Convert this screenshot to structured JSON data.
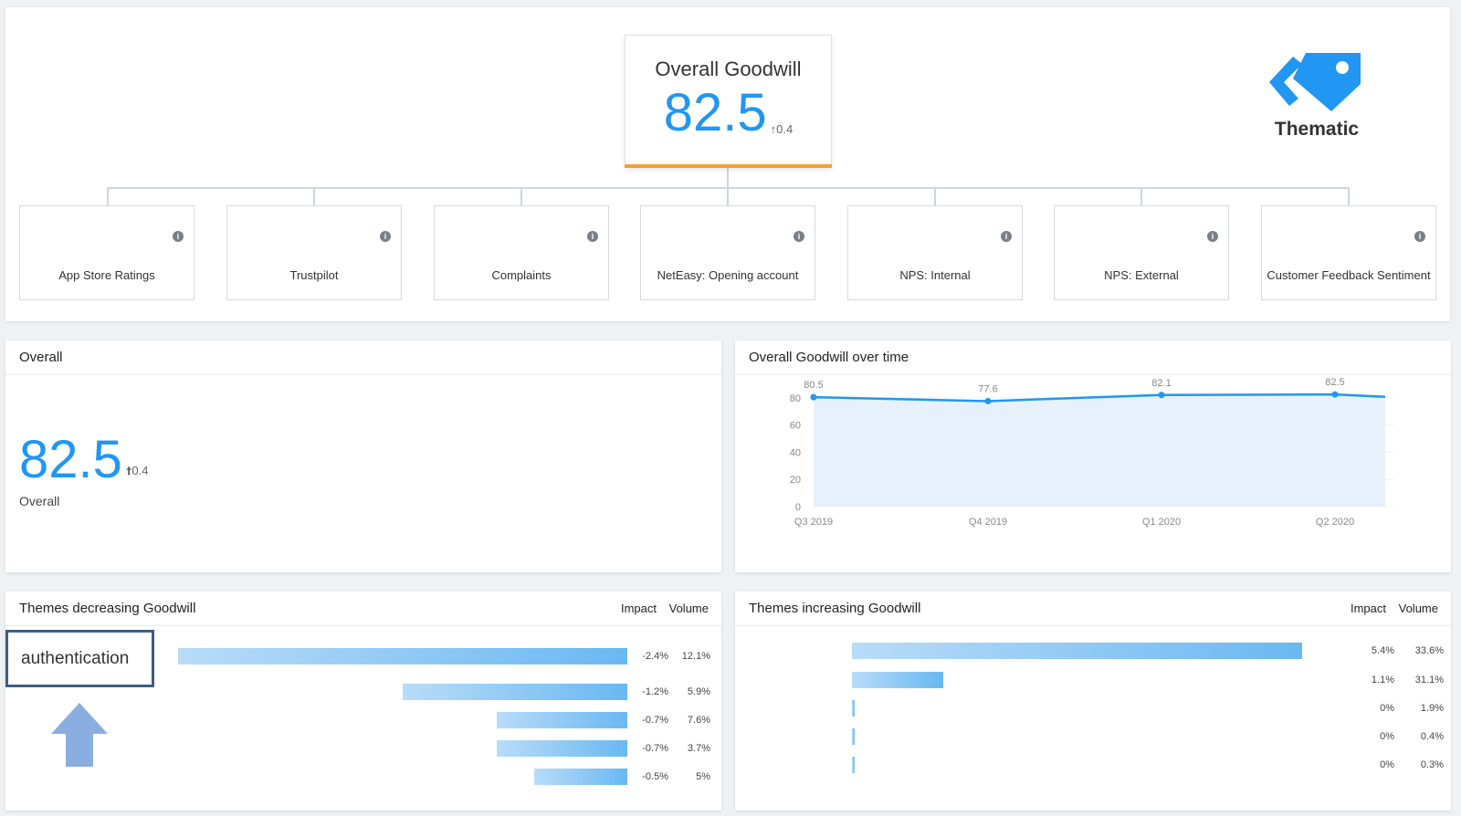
{
  "goodwill_card": {
    "title": "Overall Goodwill",
    "value": "82.5",
    "delta": "0.4"
  },
  "brand": {
    "name": "Thematic"
  },
  "metric_cards": [
    {
      "label": "App Store Ratings"
    },
    {
      "label": "Trustpilot"
    },
    {
      "label": "Complaints"
    },
    {
      "label": "NetEasy: Opening account"
    },
    {
      "label": "NPS: Internal"
    },
    {
      "label": "NPS: External"
    },
    {
      "label": "Customer Feedback Sentiment"
    }
  ],
  "info_icon_glyph": "i",
  "overall_panel": {
    "title": "Overall",
    "value": "82.5",
    "delta": "0.4",
    "caption": "Overall"
  },
  "trend_panel": {
    "title": "Overall Goodwill over time"
  },
  "chart_data": {
    "type": "area",
    "x": [
      "Q3 2019",
      "Q4 2019",
      "Q1 2020",
      "Q2 2020"
    ],
    "series": [
      {
        "values": [
          80.5,
          77.6,
          82.1,
          82.5
        ]
      }
    ],
    "data_labels": [
      "80.5",
      "77.6",
      "82.1",
      "82.5"
    ],
    "yticks": [
      0,
      20,
      40,
      60,
      80
    ],
    "ylim": [
      0,
      90
    ],
    "grid": true,
    "color": "#2196f3"
  },
  "decreasing": {
    "title": "Themes decreasing Goodwill",
    "impact_label": "Impact",
    "volume_label": "Volume",
    "highlight_theme": "authentication",
    "rows": [
      {
        "impact": "-2.4%",
        "volume": "12.1%",
        "magnitude": 2.4
      },
      {
        "impact": "-1.2%",
        "volume": "5.9%",
        "magnitude": 1.2
      },
      {
        "impact": "-0.7%",
        "volume": "7.6%",
        "magnitude": 0.7
      },
      {
        "impact": "-0.7%",
        "volume": "3.7%",
        "magnitude": 0.7
      },
      {
        "impact": "-0.5%",
        "volume": "5%",
        "magnitude": 0.5
      }
    ]
  },
  "increasing": {
    "title": "Themes increasing Goodwill",
    "impact_label": "Impact",
    "volume_label": "Volume",
    "rows": [
      {
        "impact": "5.4%",
        "volume": "33.6%",
        "magnitude": 5.4
      },
      {
        "impact": "1.1%",
        "volume": "31.1%",
        "magnitude": 1.1
      },
      {
        "impact": "0%",
        "volume": "1.9%",
        "magnitude": 0.0
      },
      {
        "impact": "0%",
        "volume": "0.4%",
        "magnitude": 0.0
      },
      {
        "impact": "0%",
        "volume": "0.3%",
        "magnitude": 0.0
      }
    ]
  },
  "colors": {
    "accent": "#2196f3",
    "card_underline": "#f5a033",
    "highlight_border": "#3f5d82",
    "arrow": "#8aaee0"
  }
}
